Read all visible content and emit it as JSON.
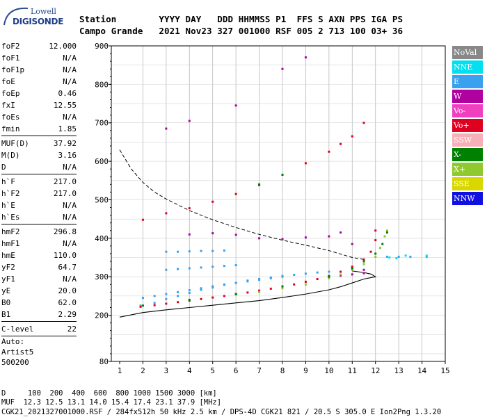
{
  "logo": {
    "top": "Lowell",
    "bottom": "DIGISONDE"
  },
  "header": {
    "labels": "Station        YYYY DAY   DDD HHMMSS P1  FFS S AXN PPS IGA PS",
    "values": "Campo Grande   2021 Nov23 327 001000 RSF 005 2 713 100 03+ 36"
  },
  "params_group1": [
    {
      "k": "foF2",
      "v": "12.000"
    },
    {
      "k": "foF1",
      "v": "N/A"
    },
    {
      "k": "foF1p",
      "v": "N/A"
    },
    {
      "k": "foE",
      "v": "N/A"
    },
    {
      "k": "foEp",
      "v": "0.46"
    },
    {
      "k": "fxI",
      "v": "12.55"
    },
    {
      "k": "foEs",
      "v": "N/A"
    },
    {
      "k": "fmin",
      "v": "1.85"
    }
  ],
  "params_group2": [
    {
      "k": "MUF(D)",
      "v": "37.92"
    },
    {
      "k": "M(D)",
      "v": "3.16"
    },
    {
      "k": "D",
      "v": "N/A"
    }
  ],
  "params_group3": [
    {
      "k": "h`F",
      "v": "217.0"
    },
    {
      "k": "h`F2",
      "v": "217.0"
    },
    {
      "k": "h`E",
      "v": "N/A"
    },
    {
      "k": "h`Es",
      "v": "N/A"
    }
  ],
  "params_group4": [
    {
      "k": "hmF2",
      "v": "296.8"
    },
    {
      "k": "hmF1",
      "v": "N/A"
    },
    {
      "k": "hmE",
      "v": "110.0"
    },
    {
      "k": "yF2",
      "v": "64.7"
    },
    {
      "k": "yF1",
      "v": "N/A"
    },
    {
      "k": "yE",
      "v": "20.0"
    },
    {
      "k": "B0",
      "v": "62.0"
    },
    {
      "k": "B1",
      "v": "2.29"
    }
  ],
  "params_group5": [
    {
      "k": "C-level",
      "v": "22"
    }
  ],
  "auto": {
    "line1": "Auto:",
    "line2": "Artist5",
    "line3": "500200"
  },
  "legend": [
    {
      "label": "NoVal",
      "color": "#888888"
    },
    {
      "label": "NNE",
      "color": "#00e0f0"
    },
    {
      "label": "E",
      "color": "#3aa0f0"
    },
    {
      "label": "W",
      "color": "#b000a0"
    },
    {
      "label": "Vo-",
      "color": "#f040c0"
    },
    {
      "label": "Vo+",
      "color": "#e00020"
    },
    {
      "label": "SSW",
      "color": "#f8b0b8"
    },
    {
      "label": "X-",
      "color": "#008000"
    },
    {
      "label": "X+",
      "color": "#90c830"
    },
    {
      "label": "SSE",
      "color": "#d8d800"
    },
    {
      "label": "NNW",
      "color": "#1010e0"
    }
  ],
  "footer": {
    "line1": "D     100  200  400  600  800 1000 1500 3000 [km]",
    "line2": "MUF  12.3 12.5 13.1 14.0 15.4 17.4 23.1 37.9 [MHz]",
    "line3": "CGK21_2021327001000.RSF / 284fx512h 50 kHz 2.5 km / DPS-4D CGK21 821 / 20.5 S 305.0 E Ion2Png 1.3.20"
  },
  "chart_data": {
    "type": "scatter",
    "xlim": [
      1,
      15
    ],
    "ylim": [
      80,
      900
    ],
    "x_ticks": [
      1,
      2,
      3,
      4,
      5,
      6,
      7,
      8,
      9,
      10,
      11,
      12,
      13,
      14,
      15
    ],
    "y_ticks": [
      80,
      200,
      300,
      400,
      500,
      600,
      700,
      800,
      900
    ],
    "grid": true,
    "series": [
      {
        "name": "E",
        "color": "#3aa0f0",
        "points": [
          [
            1.9,
            225
          ],
          [
            2.5,
            232
          ],
          [
            3,
            242
          ],
          [
            3.5,
            250
          ],
          [
            4,
            258
          ],
          [
            4.5,
            266
          ],
          [
            5,
            272
          ],
          [
            5.5,
            279
          ],
          [
            6,
            284
          ],
          [
            6.5,
            290
          ],
          [
            7,
            294
          ],
          [
            7.5,
            298
          ],
          [
            8,
            302
          ],
          [
            8.5,
            305
          ],
          [
            9,
            308
          ],
          [
            9.5,
            311
          ],
          [
            10,
            313
          ],
          [
            2,
            245
          ],
          [
            2.5,
            250
          ],
          [
            3,
            255
          ],
          [
            3.5,
            260
          ],
          [
            4,
            265
          ],
          [
            4.5,
            270
          ],
          [
            5,
            275
          ],
          [
            5.5,
            280
          ],
          [
            6,
            284
          ],
          [
            6.5,
            288
          ],
          [
            7,
            292
          ],
          [
            7.5,
            296
          ],
          [
            8,
            300
          ],
          [
            3,
            318
          ],
          [
            3.5,
            320
          ],
          [
            4,
            322
          ],
          [
            4.5,
            324
          ],
          [
            5,
            326
          ],
          [
            5.5,
            328
          ],
          [
            6,
            330
          ],
          [
            3,
            365
          ],
          [
            3.5,
            365
          ],
          [
            4,
            366
          ],
          [
            4.5,
            367
          ],
          [
            5,
            367
          ],
          [
            5.5,
            368
          ],
          [
            12.5,
            352
          ],
          [
            13,
            352
          ],
          [
            13.5,
            352
          ],
          [
            14.2,
            352
          ]
        ]
      },
      {
        "name": "Vo+",
        "color": "#e00020",
        "points": [
          [
            1.9,
            222
          ],
          [
            2.5,
            226
          ],
          [
            3,
            230
          ],
          [
            3.5,
            234
          ],
          [
            4,
            238
          ],
          [
            4.5,
            242
          ],
          [
            5,
            246
          ],
          [
            5.5,
            250
          ],
          [
            6,
            255
          ],
          [
            6.5,
            259
          ],
          [
            7,
            264
          ],
          [
            7.5,
            269
          ],
          [
            8,
            274
          ],
          [
            8.5,
            280
          ],
          [
            9,
            287
          ],
          [
            9.5,
            294
          ],
          [
            10,
            302
          ],
          [
            10.5,
            313
          ],
          [
            11,
            326
          ],
          [
            11.5,
            345
          ],
          [
            11.8,
            365
          ],
          [
            12,
            395
          ],
          [
            12,
            420
          ],
          [
            2,
            448
          ],
          [
            3,
            465
          ],
          [
            4,
            478
          ],
          [
            5,
            495
          ],
          [
            6,
            515
          ],
          [
            7,
            540
          ],
          [
            8,
            565
          ],
          [
            9,
            595
          ],
          [
            10,
            625
          ],
          [
            10.5,
            645
          ],
          [
            11,
            665
          ],
          [
            11.5,
            700
          ]
        ]
      },
      {
        "name": "W",
        "color": "#b000a0",
        "points": [
          [
            10,
            300
          ],
          [
            10.5,
            303
          ],
          [
            11,
            306
          ],
          [
            11.5,
            309
          ],
          [
            11,
            322
          ],
          [
            11.5,
            318
          ],
          [
            4,
            410
          ],
          [
            5,
            413
          ],
          [
            6,
            409
          ],
          [
            7,
            400
          ],
          [
            8,
            398
          ],
          [
            9,
            402
          ],
          [
            10,
            405
          ],
          [
            10.5,
            415
          ],
          [
            11,
            385
          ],
          [
            3,
            685
          ],
          [
            4,
            705
          ],
          [
            6,
            745
          ],
          [
            8,
            840
          ],
          [
            9,
            870
          ]
        ]
      },
      {
        "name": "X+",
        "color": "#90c830",
        "points": [
          [
            6,
            254
          ],
          [
            7,
            260
          ],
          [
            8,
            270
          ],
          [
            9,
            280
          ],
          [
            10,
            296
          ],
          [
            10.5,
            306
          ],
          [
            11,
            318
          ],
          [
            11.5,
            333
          ],
          [
            12,
            352
          ],
          [
            12.2,
            375
          ],
          [
            12.4,
            405
          ],
          [
            12.5,
            420
          ]
        ]
      },
      {
        "name": "X-",
        "color": "#008000",
        "points": [
          [
            2,
            225
          ],
          [
            4,
            240
          ],
          [
            6,
            255
          ],
          [
            8,
            275
          ],
          [
            10,
            300
          ],
          [
            11,
            322
          ],
          [
            11.5,
            340
          ],
          [
            12,
            360
          ],
          [
            12.3,
            385
          ],
          [
            12.5,
            415
          ],
          [
            8,
            565
          ],
          [
            7,
            538
          ]
        ]
      },
      {
        "name": "NNE",
        "color": "#00e0f0",
        "points": [
          [
            12.6,
            350
          ],
          [
            12.9,
            348
          ],
          [
            13.3,
            355
          ],
          [
            14.2,
            355
          ]
        ]
      }
    ],
    "virtual_height_trace": [
      [
        1,
        195
      ],
      [
        2,
        207
      ],
      [
        3,
        214
      ],
      [
        4,
        220
      ],
      [
        5,
        226
      ],
      [
        6,
        232
      ],
      [
        7,
        238
      ],
      [
        8,
        246
      ],
      [
        9,
        255
      ],
      [
        10,
        266
      ],
      [
        10.5,
        274
      ],
      [
        11,
        284
      ],
      [
        11.5,
        294
      ],
      [
        12,
        300
      ],
      [
        11.8,
        307
      ],
      [
        11.5,
        311
      ],
      [
        11,
        315
      ]
    ],
    "dashed_profile": [
      [
        1,
        630
      ],
      [
        1.5,
        580
      ],
      [
        2,
        545
      ],
      [
        2.5,
        520
      ],
      [
        3,
        502
      ],
      [
        4,
        472
      ],
      [
        5,
        448
      ],
      [
        6,
        428
      ],
      [
        7,
        410
      ],
      [
        8,
        395
      ],
      [
        9,
        382
      ],
      [
        10,
        368
      ],
      [
        11,
        350
      ],
      [
        11.5,
        345
      ]
    ]
  }
}
